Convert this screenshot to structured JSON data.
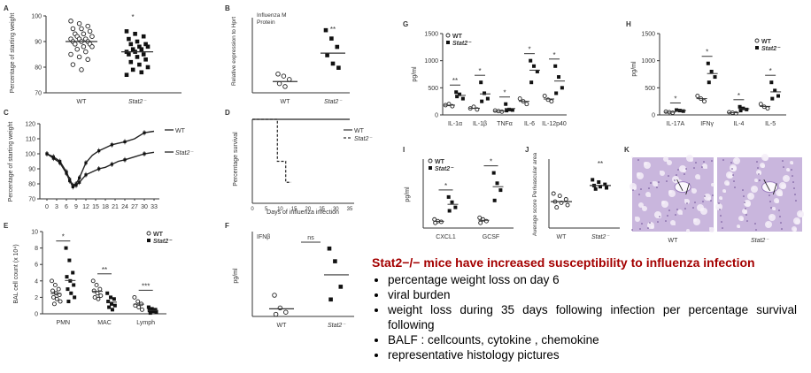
{
  "panels": {
    "A": {
      "letter": "A",
      "ylabel": "Percentage of starting weight",
      "yticks": [
        "100",
        "90",
        "80",
        "70"
      ],
      "xlabels": [
        "WT",
        "Stat2⁻"
      ],
      "sig": "*",
      "groups": [
        {
          "name": "WT",
          "marker": "open-circle",
          "values": [
            98,
            97,
            96,
            95,
            95,
            94,
            93,
            93,
            92,
            92,
            91,
            91,
            91,
            90,
            90,
            90,
            89,
            89,
            88,
            88,
            87,
            86,
            85,
            84,
            83,
            81,
            79
          ],
          "mean": 90
        },
        {
          "name": "Stat2⁻",
          "marker": "filled-square",
          "values": [
            94,
            93,
            92,
            91,
            90,
            89,
            89,
            88,
            88,
            87,
            87,
            86,
            86,
            85,
            85,
            84,
            83,
            82,
            81,
            80,
            79,
            78,
            77
          ],
          "mean": 86
        }
      ]
    },
    "B": {
      "letter": "B",
      "title1": "Influenza M",
      "title2": "Protein",
      "ylabel": "Relative expression to Hprt",
      "xlabels": [
        "WT",
        "Stat2⁻"
      ],
      "sig": "**",
      "groups": [
        {
          "name": "WT",
          "marker": "open-circle",
          "values": [
            4.5,
            4.0,
            3.2,
            2.2,
            1.5
          ],
          "mean": 2.7
        },
        {
          "name": "Stat2⁻",
          "marker": "filled-square",
          "values": [
            15,
            13,
            11,
            9,
            7,
            6
          ],
          "mean": 9.5
        }
      ]
    },
    "C": {
      "letter": "C",
      "ylabel": "Percentage of starting weight",
      "yticks": [
        "120",
        "110",
        "100",
        "90",
        "80",
        "70"
      ],
      "xticks": [
        "0",
        "3",
        "6",
        "9",
        "12",
        "15",
        "18",
        "21",
        "24",
        "27",
        "30",
        "33"
      ],
      "legend": [
        "WT",
        "Stat2⁻"
      ],
      "series": [
        {
          "name": "WT",
          "x": [
            0,
            2,
            4,
            6,
            7,
            8,
            9,
            10,
            12,
            14,
            16,
            18,
            20,
            22,
            24,
            27,
            30,
            33
          ],
          "y": [
            100,
            98,
            95,
            88,
            83,
            79,
            80,
            84,
            94,
            99,
            102,
            104,
            106,
            107,
            108,
            110,
            114,
            115
          ]
        },
        {
          "name": "Stat2⁻",
          "x": [
            0,
            2,
            4,
            6,
            7,
            8,
            9,
            10,
            12,
            14,
            16,
            18,
            20,
            22,
            24,
            27,
            30,
            33
          ],
          "y": [
            100,
            97,
            94,
            87,
            82,
            78,
            79,
            81,
            86,
            88,
            90,
            91,
            93,
            95,
            96,
            98,
            100,
            101
          ]
        }
      ]
    },
    "D": {
      "letter": "D",
      "ylabel": "Percentage survival",
      "xlabel": "Days of influenza infection",
      "yticks": [
        "100",
        "50",
        "0"
      ],
      "xticks": [
        "0",
        "5",
        "10",
        "15",
        "20",
        "25",
        "30",
        "35"
      ],
      "legend": [
        "WT",
        "Stat2⁻"
      ],
      "series": [
        {
          "name": "WT",
          "x": [
            0,
            35
          ],
          "y": [
            100,
            100
          ]
        },
        {
          "name": "Stat2⁻",
          "x": [
            0,
            9,
            9,
            10,
            10,
            12,
            12,
            14
          ],
          "y": [
            100,
            100,
            50,
            50,
            50,
            50,
            25,
            25
          ]
        }
      ]
    },
    "E": {
      "letter": "E",
      "ylabel": "BAL cell count (x 10⁴)",
      "yticks": [
        "10",
        "8",
        "6",
        "4",
        "2",
        "0"
      ],
      "categories": [
        "PMN",
        "MAC",
        "Lymph"
      ],
      "sigs": [
        "*",
        "**",
        "***"
      ],
      "legend": [
        "WT",
        "Stat2⁻"
      ],
      "groups": [
        {
          "wt": [
            4,
            3.5,
            3,
            2.8,
            2.5,
            2.3,
            2,
            1.8,
            1.5,
            1.2
          ],
          "ko": [
            8,
            6.5,
            5,
            4.5,
            4,
            3.5,
            3,
            2.5,
            2,
            1.5
          ]
        },
        {
          "wt": [
            4,
            3.5,
            3,
            2.8,
            2.5,
            2.2,
            2,
            1.8
          ],
          "ko": [
            2.5,
            2,
            1.8,
            1.5,
            1.2,
            1,
            0.8,
            0.5
          ]
        },
        {
          "wt": [
            2,
            1.5,
            1.2,
            1,
            0.8,
            0.5
          ],
          "ko": [
            0.8,
            0.6,
            0.5,
            0.4,
            0.3,
            0.2,
            0.1
          ]
        }
      ]
    },
    "F": {
      "letter": "F",
      "title": "IFNβ",
      "ylabel": "pg/ml",
      "xlabels": [
        "WT",
        "Stat2⁻"
      ],
      "sig": "ns",
      "groups": [
        {
          "name": "WT",
          "values": [
            5,
            2,
            1,
            0.5
          ],
          "mean": 1.8
        },
        {
          "name": "Stat2⁻",
          "values": [
            16,
            13,
            7,
            4
          ],
          "mean": 9.8
        }
      ]
    },
    "G": {
      "letter": "G",
      "ylabel": "pg/ml",
      "yticks": [
        "1500",
        "1000",
        "500",
        "0"
      ],
      "categories": [
        "IL-1α",
        "IL-1β",
        "TNFα",
        "IL-6",
        "IL-12p40"
      ],
      "sigs": [
        "**",
        "*",
        "*",
        "*",
        "*"
      ],
      "legend": [
        "WT",
        "Stat2⁻"
      ],
      "groups": [
        {
          "wt": [
            180,
            200,
            160
          ],
          "ko": [
            420,
            380,
            300,
            340
          ]
        },
        {
          "wt": [
            120,
            150,
            100
          ],
          "ko": [
            600,
            400,
            300,
            250
          ]
        },
        {
          "wt": [
            80,
            70,
            60
          ],
          "ko": [
            200,
            100,
            90,
            80
          ]
        },
        {
          "wt": [
            300,
            250,
            200
          ],
          "ko": [
            1000,
            900,
            800,
            600
          ]
        },
        {
          "wt": [
            350,
            280,
            250
          ],
          "ko": [
            900,
            700,
            500,
            400
          ]
        }
      ]
    },
    "H": {
      "letter": "H",
      "ylabel": "pg/ml",
      "yticks": [
        "1500",
        "1000",
        "500",
        "0"
      ],
      "categories": [
        "IL-17A",
        "IFNγ",
        "IL-4",
        "IL-5"
      ],
      "sigs": [
        "*",
        "*",
        "*",
        "*"
      ],
      "legend": [
        "WT",
        "Stat2⁻"
      ],
      "groups": [
        {
          "wt": [
            60,
            50,
            40
          ],
          "ko": [
            90,
            80,
            70
          ]
        },
        {
          "wt": [
            350,
            300,
            250
          ],
          "ko": [
            950,
            800,
            700,
            600
          ]
        },
        {
          "wt": [
            50,
            40,
            30
          ],
          "ko": [
            150,
            120,
            100,
            80
          ]
        },
        {
          "wt": [
            200,
            150,
            120
          ],
          "ko": [
            600,
            450,
            350,
            300
          ]
        }
      ]
    },
    "I": {
      "letter": "I",
      "ylabel": "pg/ml",
      "yticks": [
        "200",
        "150",
        "100",
        "50",
        "0"
      ],
      "categories": [
        "CXCL1",
        "GCSF"
      ],
      "sigs": [
        "*",
        "*"
      ],
      "legend": [
        "WT",
        "Stat2⁻"
      ],
      "groups": [
        {
          "wt": [
            25,
            20,
            18,
            15
          ],
          "ko": [
            90,
            75,
            60,
            50
          ]
        },
        {
          "wt": [
            30,
            25,
            20,
            15
          ],
          "ko": [
            160,
            130,
            110,
            80
          ]
        }
      ]
    },
    "J": {
      "letter": "J",
      "ylabel": "Average score Perivascular area",
      "yticks": [
        "6",
        "4",
        "2",
        "0"
      ],
      "xlabels": [
        "WT",
        "Stat2⁻"
      ],
      "sig": "**",
      "groups": [
        {
          "name": "WT",
          "values": [
            3,
            2.8,
            2.5,
            2.3,
            2.2,
            2,
            1.8
          ],
          "mean": 2.3
        },
        {
          "name": "Stat2⁻",
          "values": [
            4.2,
            4,
            3.8,
            3.7,
            3.6,
            3.5,
            3.4
          ],
          "mean": 3.7
        }
      ]
    },
    "K": {
      "letter": "K",
      "labels": [
        "WT",
        "Stat2⁻"
      ]
    }
  },
  "summary": {
    "headline": "Stat2−/− mice have increased susceptibility to influenza infection",
    "bullets": [
      "percentage weight loss on day 6",
      "viral burden",
      "weight loss during 35 days following infection per percentage survival following",
      "BALF : cellcounts, cytokine , chemokine",
      "representative histology pictures"
    ]
  },
  "colors": {
    "axis": "#333333",
    "text": "#333333",
    "headline": "#a40000",
    "histology": "#c9b6dd"
  }
}
